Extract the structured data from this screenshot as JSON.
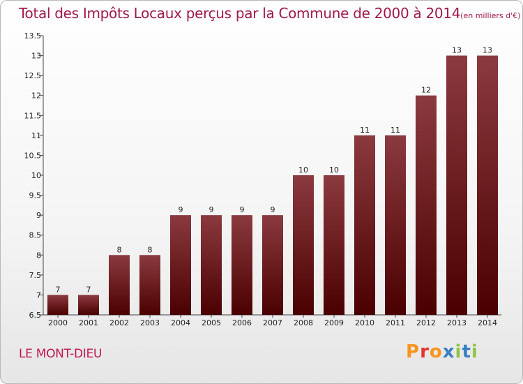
{
  "header": {
    "title": "Total des Impôts Locaux perçus par la Commune de 2000 à 2014",
    "unit": "(en milliers d'€)"
  },
  "footer": {
    "commune": "LE MONT-DIEU",
    "logo_letters": [
      "P",
      "r",
      "o",
      "x",
      "i",
      "t",
      "i"
    ],
    "logo_colors": [
      "#f7941d",
      "#e8312f",
      "#f7941d",
      "#3a7fc1",
      "#8dc63f",
      "#3a7fc1",
      "#8dc63f"
    ]
  },
  "chart_data": {
    "type": "bar",
    "title": "Total des Impôts Locaux perçus par la Commune de 2000 à 2014",
    "xlabel": "",
    "ylabel": "",
    "categories": [
      "2000",
      "2001",
      "2002",
      "2003",
      "2004",
      "2005",
      "2006",
      "2007",
      "2008",
      "2009",
      "2010",
      "2011",
      "2012",
      "2013",
      "2014"
    ],
    "values": [
      7,
      7,
      8,
      8,
      9,
      9,
      9,
      9,
      10,
      10,
      11,
      11,
      12,
      13,
      13
    ],
    "labels": [
      "7",
      "7",
      "8",
      "8",
      "9",
      "9",
      "9",
      "9",
      "10",
      "10",
      "11",
      "11",
      "12",
      "13",
      "13"
    ],
    "ylim": [
      6.5,
      13.5
    ],
    "yticks": [
      "6.5",
      "7",
      "7.5",
      "8",
      "8.5",
      "9",
      "9.5",
      "10",
      "10.5",
      "11",
      "11.5",
      "12",
      "12.5",
      "13",
      "13.5"
    ],
    "bar_color_top": "#8b3a3f",
    "bar_color_bottom": "#4a0000",
    "grid": false
  }
}
